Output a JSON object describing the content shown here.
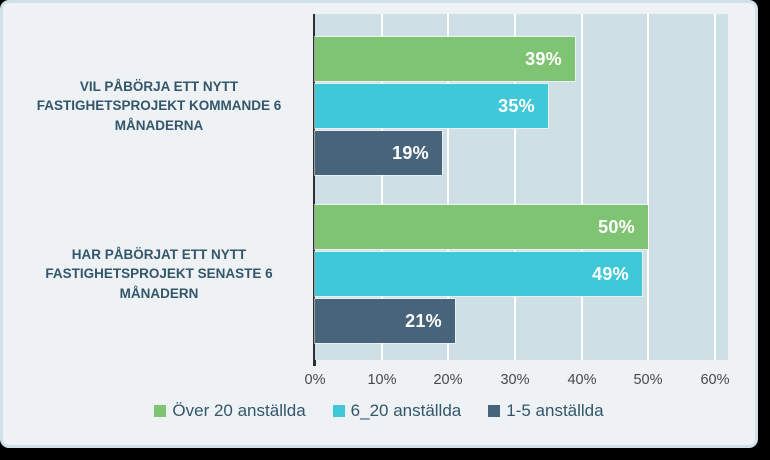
{
  "chart_data": {
    "type": "bar",
    "orientation": "horizontal",
    "title": "",
    "categories": [
      "VIL PÅBÖRJA ETT NYTT FASTIGHETSPROJEKT KOMMANDE 6 MÅNADERNA",
      "HAR PÅBÖRJAT ETT NYTT FASTIGHETSPROJEKT SENASTE 6 MÅNADERN"
    ],
    "series": [
      {
        "name": "Över 20 anställda",
        "color": "#7fc472",
        "values": [
          39,
          50
        ]
      },
      {
        "name": "6_20 anställda",
        "color": "#3fc8d7",
        "values": [
          35,
          49
        ]
      },
      {
        "name": "1-5 anställda",
        "color": "#48647a",
        "values": [
          19,
          21
        ]
      }
    ],
    "value_suffix": "%",
    "x_ticks": [
      "0%",
      "10%",
      "20%",
      "30%",
      "40%",
      "50%",
      "60%"
    ],
    "xlim": [
      0,
      60
    ],
    "grid": true,
    "legend_position": "bottom",
    "colors": {
      "plot_background": "#cfdfe6",
      "card_background": "#eef2f5",
      "card_border": "#d2e0e9",
      "axis_line": "#2e2e2e",
      "gridline": "#ffffff",
      "category_text": "#33566b",
      "tick_text": "#484848",
      "value_text": "#ffffff"
    }
  }
}
